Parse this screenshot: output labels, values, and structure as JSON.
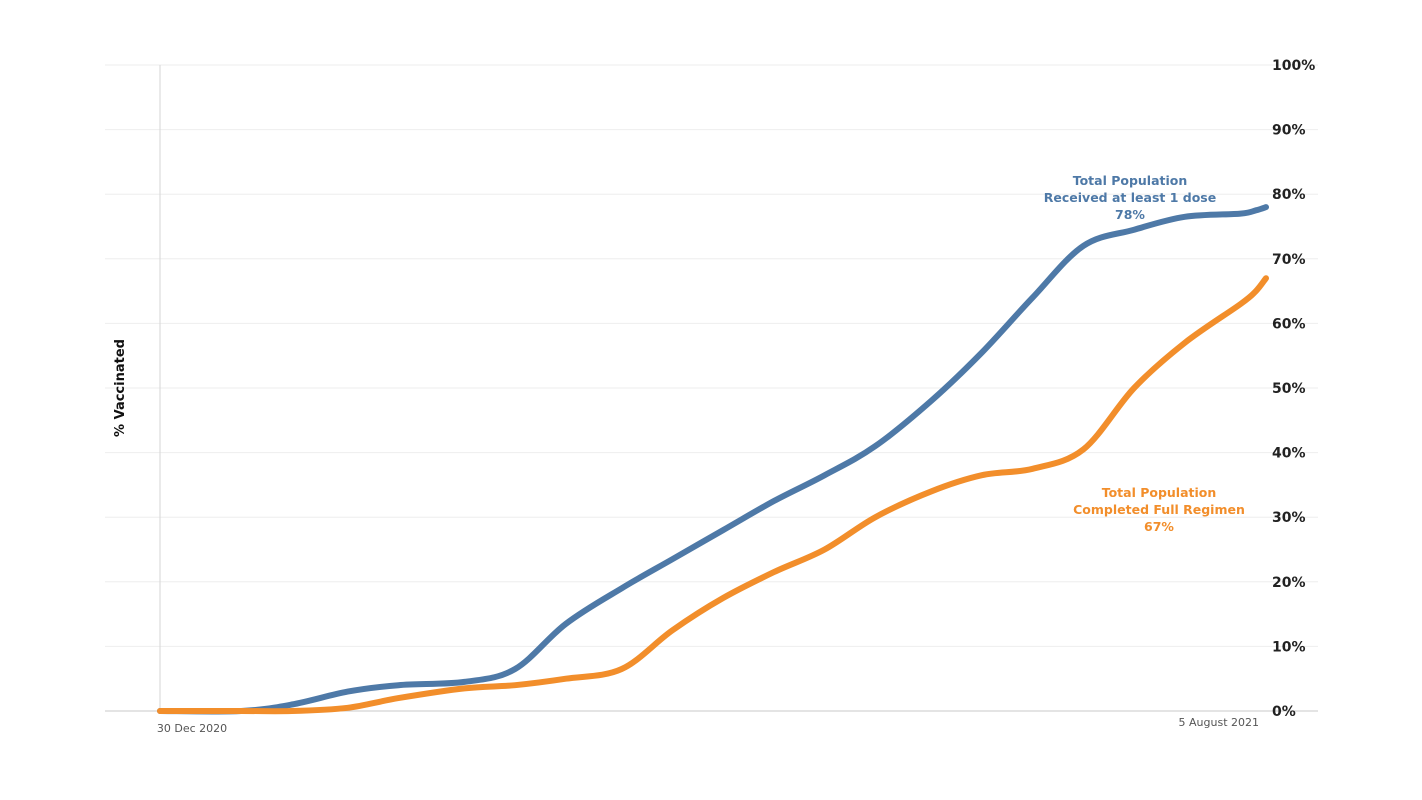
{
  "chart_data": {
    "type": "line",
    "ylabel": "% Vaccinated",
    "x_start_label": "30 Dec 2020",
    "x_end_label": "5 August 2021",
    "x_start": "2020-12-30",
    "x_end": "2021-08-05",
    "ylim": [
      0,
      100
    ],
    "y_ticks": [
      "0%",
      "10%",
      "20%",
      "30%",
      "40%",
      "50%",
      "60%",
      "70%",
      "80%",
      "90%",
      "100%"
    ],
    "y_axis_side": "right",
    "grid": true,
    "colors": {
      "first_dose": "#4e79a7",
      "full_regimen": "#f28e2b"
    },
    "series": [
      {
        "key": "first_dose",
        "name": "Total Population Received at least 1 dose",
        "annotation": [
          "Total Population",
          "Received at least 1 dose",
          "78%"
        ],
        "x": [
          "2020-12-30",
          "2021-01-15",
          "2021-01-25",
          "2021-02-05",
          "2021-02-15",
          "2021-02-28",
          "2021-03-10",
          "2021-03-20",
          "2021-03-31",
          "2021-04-10",
          "2021-04-20",
          "2021-04-30",
          "2021-05-10",
          "2021-05-20",
          "2021-05-31",
          "2021-06-10",
          "2021-06-20",
          "2021-06-30",
          "2021-07-10",
          "2021-07-20",
          "2021-07-31",
          "2021-08-03",
          "2021-08-05"
        ],
        "values": [
          0,
          0,
          1,
          3,
          4,
          4.5,
          6.5,
          13.5,
          19,
          23.5,
          28,
          32.5,
          36.5,
          41,
          48,
          55.5,
          64,
          72,
          74.5,
          76.5,
          77,
          77.5,
          78
        ]
      },
      {
        "key": "full_regimen",
        "name": "Total Population Completed Full Regimen",
        "annotation": [
          "Total Population",
          "Completed Full Regimen",
          "67%"
        ],
        "x": [
          "2020-12-30",
          "2021-01-15",
          "2021-01-25",
          "2021-02-05",
          "2021-02-15",
          "2021-02-28",
          "2021-03-10",
          "2021-03-20",
          "2021-03-31",
          "2021-04-10",
          "2021-04-20",
          "2021-04-30",
          "2021-05-10",
          "2021-05-20",
          "2021-05-31",
          "2021-06-10",
          "2021-06-20",
          "2021-06-30",
          "2021-07-10",
          "2021-07-20",
          "2021-07-31",
          "2021-08-03",
          "2021-08-05"
        ],
        "values": [
          0,
          0,
          0,
          0.5,
          2,
          3.5,
          4,
          5,
          6.5,
          12.5,
          17.5,
          21.5,
          25,
          30,
          34,
          36.5,
          37.5,
          40.5,
          50,
          57,
          63,
          65,
          67
        ]
      }
    ]
  }
}
